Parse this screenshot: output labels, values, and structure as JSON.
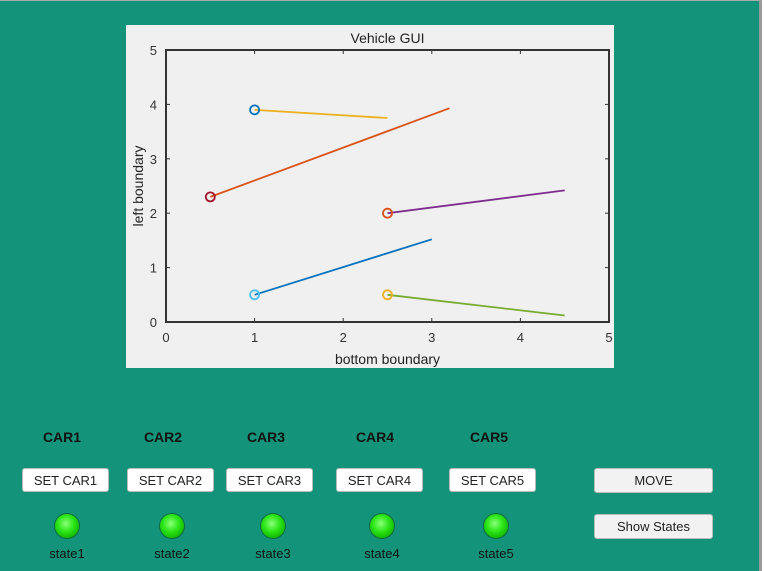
{
  "chart_data": {
    "type": "line",
    "title": "Vehicle GUI",
    "xlabel": "bottom boundary",
    "ylabel": "left boundary",
    "xlim": [
      0,
      5
    ],
    "ylim": [
      0,
      5
    ],
    "xticks": [
      "0",
      "1",
      "2",
      "3",
      "4",
      "5"
    ],
    "yticks": [
      "0",
      "1",
      "2",
      "3",
      "4",
      "5"
    ],
    "grid": false,
    "series": [
      {
        "x": [
          1,
          2.5
        ],
        "y": [
          3.9,
          3.75
        ],
        "line_color": "#EDB120",
        "marker_color": "#0072BD"
      },
      {
        "x": [
          0.5,
          3.2
        ],
        "y": [
          2.3,
          3.93
        ],
        "line_color": "#D95319",
        "marker_color": "#A2142F"
      },
      {
        "x": [
          2.5,
          4.5
        ],
        "y": [
          2.0,
          2.42
        ],
        "line_color": "#7E2F8E",
        "marker_color": "#D95319"
      },
      {
        "x": [
          1,
          3
        ],
        "y": [
          0.5,
          1.52
        ],
        "line_color": "#0072BD",
        "marker_color": "#4DBEEE"
      },
      {
        "x": [
          2.5,
          4.5
        ],
        "y": [
          0.5,
          0.12
        ],
        "line_color": "#77AC30",
        "marker_color": "#EDB120"
      }
    ]
  },
  "cars": [
    {
      "label": "CAR1",
      "button": "SET CAR1",
      "state": "state1"
    },
    {
      "label": "CAR2",
      "button": "SET CAR2",
      "state": "state2"
    },
    {
      "label": "CAR3",
      "button": "SET CAR3",
      "state": "state3"
    },
    {
      "label": "CAR4",
      "button": "SET CAR4",
      "state": "state4"
    },
    {
      "label": "CAR5",
      "button": "SET CAR5",
      "state": "state5"
    }
  ],
  "controls": {
    "move": "MOVE",
    "show_states": "Show States"
  },
  "colors": {
    "background": "#12937A",
    "lamp": "#2EE81A"
  }
}
